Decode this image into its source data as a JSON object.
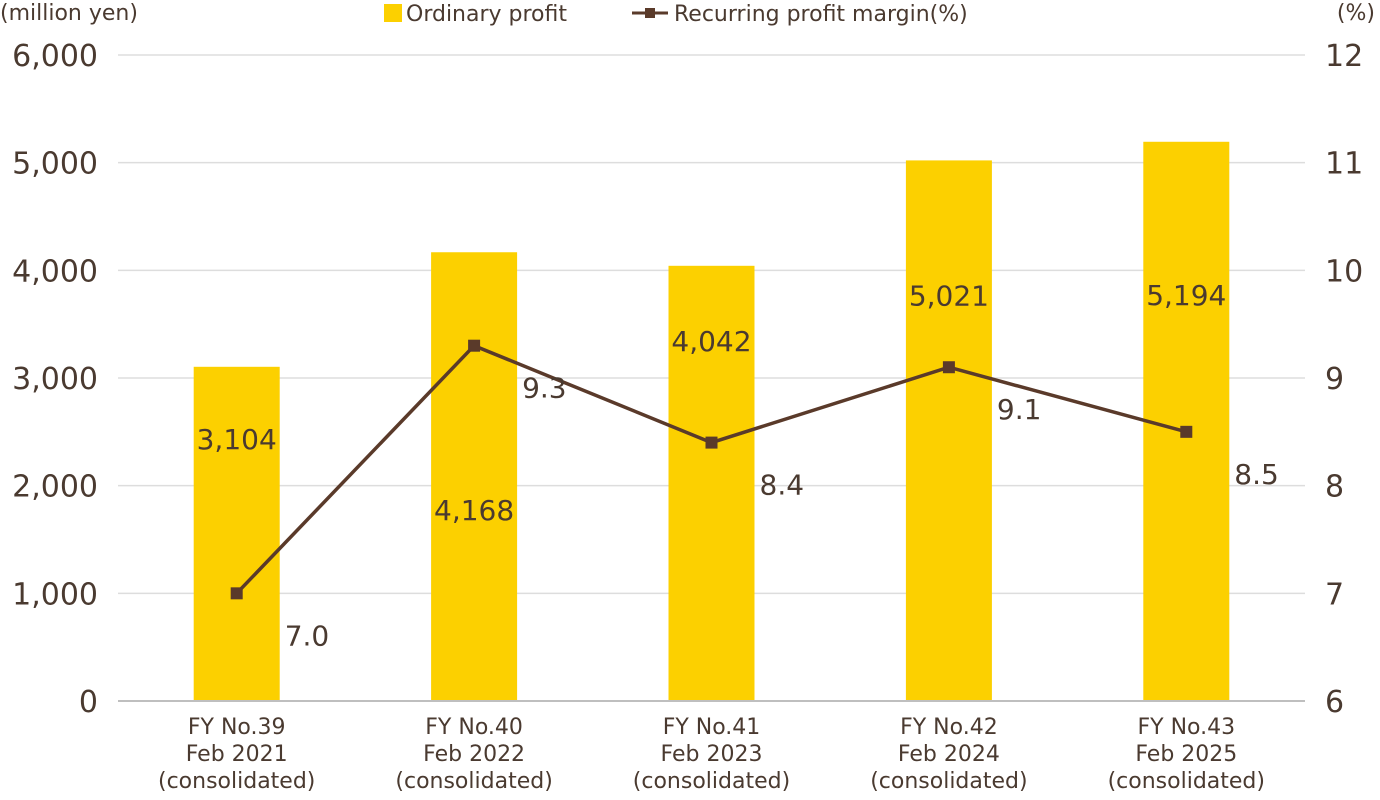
{
  "chart_data": {
    "type": "bar",
    "left_unit": "(million yen)",
    "right_unit": "(%)",
    "categories": [
      [
        "FY No.39",
        "Feb 2021",
        "(consolidated)"
      ],
      [
        "FY No.40",
        "Feb 2022",
        "(consolidated)"
      ],
      [
        "FY No.41",
        "Feb 2023",
        "(consolidated)"
      ],
      [
        "FY No.42",
        "Feb 2024",
        "(consolidated)"
      ],
      [
        "FY No.43",
        "Feb 2025",
        "(consolidated)"
      ]
    ],
    "y_left": {
      "min": 0,
      "max": 6000,
      "ticks": [
        "0",
        "1,000",
        "2,000",
        "3,000",
        "4,000",
        "5,000",
        "6,000"
      ]
    },
    "y_right": {
      "min": 6,
      "max": 12,
      "ticks": [
        "6",
        "7",
        "8",
        "9",
        "10",
        "11",
        "12"
      ]
    },
    "grid": true,
    "legend_position": "top",
    "series": [
      {
        "name": "Ordinary profit",
        "type": "bar",
        "axis": "left",
        "color": "#fcd000",
        "values": [
          3104,
          4168,
          4042,
          5021,
          5194
        ],
        "labels": [
          "3,104",
          "4,168",
          "4,042",
          "5,021",
          "5,194"
        ]
      },
      {
        "name": "Recurring profit margin(%)",
        "type": "line",
        "axis": "right",
        "color": "#5a3a2a",
        "values": [
          7.0,
          9.3,
          8.4,
          9.1,
          8.5
        ],
        "labels": [
          "7.0",
          "9.3",
          "8.4",
          "9.1",
          "8.5"
        ]
      }
    ]
  }
}
